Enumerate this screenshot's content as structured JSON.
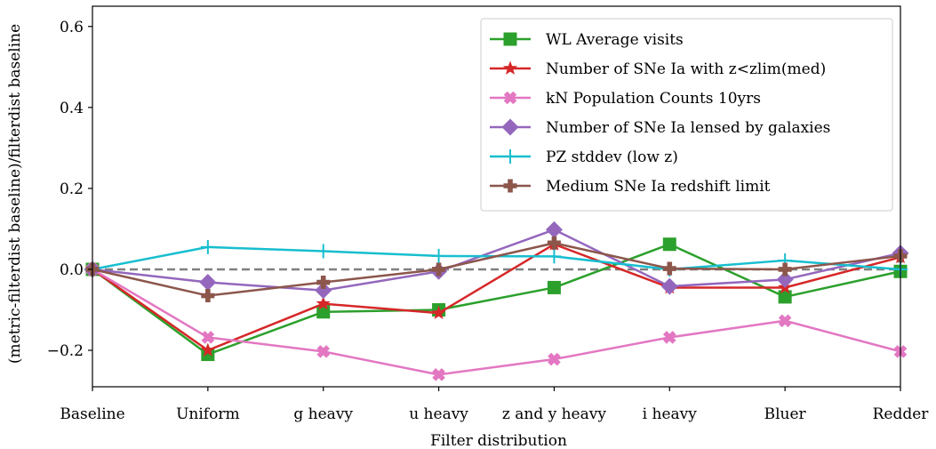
{
  "chart_data": {
    "type": "line",
    "xlabel": "Filter distribution",
    "ylabel": "(metric-filterdist baseline)/filterdist baseline",
    "categories": [
      "Baseline",
      "Uniform",
      "g heavy",
      "u heavy",
      "z and y heavy",
      "i heavy",
      "Bluer",
      "Redder"
    ],
    "ylim": [
      -0.29,
      0.65
    ],
    "yticks": [
      -0.2,
      0.0,
      0.2,
      0.4,
      0.6
    ],
    "ytick_labels": [
      "−0.2",
      "0.0",
      "0.2",
      "0.4",
      "0.6"
    ],
    "reference_line": 0.0,
    "grid": false,
    "legend_position": "top-right",
    "series": [
      {
        "name": "WL Average visits",
        "color": "#2ca02c",
        "marker": "square",
        "values": [
          0.0,
          -0.21,
          -0.105,
          -0.1,
          -0.045,
          0.062,
          -0.068,
          -0.005
        ]
      },
      {
        "name": "Number of SNe Ia with z<zlim(med)",
        "color": "#d62728",
        "marker": "star",
        "values": [
          0.0,
          -0.2,
          -0.085,
          -0.108,
          0.062,
          -0.045,
          -0.045,
          0.03
        ]
      },
      {
        "name": "kN Population Counts 10yrs",
        "color": "#e377c2",
        "marker": "x-filled",
        "values": [
          0.0,
          -0.168,
          -0.203,
          -0.26,
          -0.222,
          -0.168,
          -0.127,
          -0.203
        ]
      },
      {
        "name": "Number of SNe Ia lensed by galaxies",
        "color": "#9467bd",
        "marker": "diamond",
        "values": [
          0.0,
          -0.032,
          -0.052,
          -0.005,
          0.098,
          -0.042,
          -0.025,
          0.04
        ]
      },
      {
        "name": "PZ stddev (low z)",
        "color": "#17becf",
        "marker": "plus",
        "values": [
          0.0,
          0.055,
          0.045,
          0.033,
          0.032,
          0.0,
          0.022,
          0.0
        ]
      },
      {
        "name": "Medium SNe Ia redshift limit",
        "color": "#8c564b",
        "marker": "plus-filled",
        "values": [
          0.0,
          -0.065,
          -0.032,
          0.0,
          0.065,
          0.002,
          0.0,
          0.033
        ]
      }
    ]
  }
}
